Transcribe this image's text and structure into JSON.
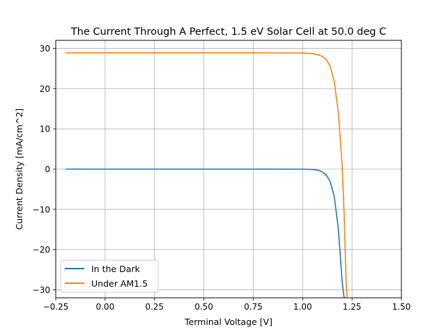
{
  "chart_data": {
    "type": "line",
    "title": "The Current Through A Perfect, 1.5 eV Solar Cell at 50.0 deg C",
    "xlabel": "Terminal Voltage [V]",
    "ylabel": "Current Density [mA/cm^2]",
    "xlim": [
      -0.25,
      1.5
    ],
    "ylim": [
      -32,
      32
    ],
    "xticks": [
      -0.25,
      0.0,
      0.25,
      0.5,
      0.75,
      1.0,
      1.25,
      1.5
    ],
    "xtick_labels": [
      "−0.25",
      "0.00",
      "0.25",
      "0.50",
      "0.75",
      "1.00",
      "1.25",
      "1.50"
    ],
    "yticks": [
      -30,
      -20,
      -10,
      0,
      10,
      20,
      30
    ],
    "ytick_labels": [
      "−30",
      "−20",
      "−10",
      "0",
      "10",
      "20",
      "30"
    ],
    "grid": true,
    "legend_position": "lower-left",
    "series": [
      {
        "name": "In the Dark",
        "color": "#1f77b4",
        "x": [
          -0.2,
          0.0,
          0.25,
          0.5,
          0.75,
          1.0,
          1.05,
          1.08,
          1.1,
          1.12,
          1.14,
          1.16,
          1.18,
          1.19,
          1.2,
          1.21,
          1.215
        ],
        "y": [
          0,
          0,
          0,
          0,
          0,
          -0.02,
          -0.1,
          -0.3,
          -0.7,
          -1.5,
          -3.2,
          -6.8,
          -14.5,
          -21.0,
          -28.0,
          -32.0,
          -32.0
        ]
      },
      {
        "name": "Under AM1.5",
        "color": "#ff7f0e",
        "x": [
          -0.2,
          0.0,
          0.25,
          0.5,
          0.75,
          1.0,
          1.05,
          1.08,
          1.1,
          1.12,
          1.14,
          1.16,
          1.18,
          1.19,
          1.2,
          1.21,
          1.22,
          1.225
        ],
        "y": [
          28.9,
          28.9,
          28.9,
          28.9,
          28.9,
          28.85,
          28.7,
          28.4,
          28.0,
          27.2,
          25.5,
          21.8,
          14.3,
          8.0,
          1.0,
          -11.0,
          -28.0,
          -32.0
        ]
      }
    ]
  }
}
